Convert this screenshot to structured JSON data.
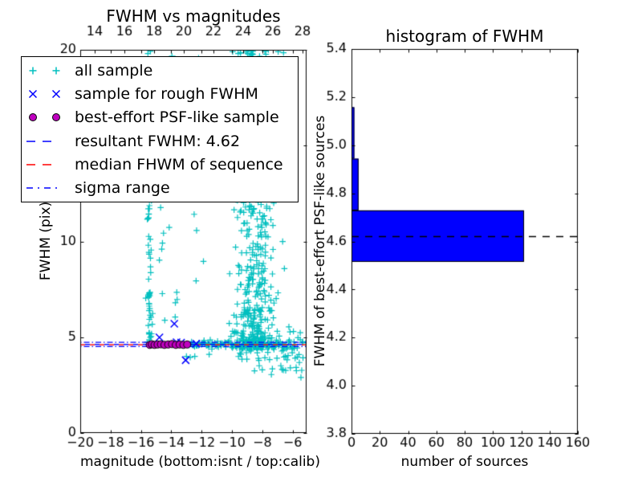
{
  "colors": {
    "cyan": "#00bfbf",
    "blue": "#0000ff",
    "magenta": "#bf00bf",
    "red": "#ff0000",
    "black": "#000000",
    "hist_bar": "#0000ff",
    "background": "#ffffff"
  },
  "left_plot": {
    "title": "FWHM vs magnitudes",
    "xlabel": "magnitude (bottom:isnt / top:calib)",
    "ylabel": "FWHM (pix)",
    "xlim": [
      -20,
      -5.08
    ],
    "ylim": [
      0,
      20
    ],
    "top_xlim": [
      13.03,
      28.27
    ],
    "xticks": {
      "values": [
        -20,
        -18,
        -16,
        -14,
        -12,
        -10,
        -8,
        -6
      ],
      "labels": [
        "−20",
        "−18",
        "−16",
        "−14",
        "−12",
        "−10",
        "−8",
        "−6"
      ]
    },
    "top_ticks": {
      "values": [
        14,
        16,
        18,
        20,
        22,
        24,
        26,
        28
      ],
      "labels": [
        "14",
        "16",
        "18",
        "20",
        "22",
        "24",
        "26",
        "28"
      ]
    },
    "yticks": {
      "values": [
        0,
        5,
        10,
        15,
        20
      ],
      "labels": [
        "0",
        "5",
        "10",
        "15",
        "20"
      ]
    }
  },
  "right_plot": {
    "title": "histogram of FWHM",
    "xlabel": "number of sources",
    "ylabel": "FWHM of best-effort PSF-like sources",
    "xlim": [
      0,
      160
    ],
    "ylim": [
      3.8,
      5.4
    ],
    "xticks": {
      "values": [
        0,
        20,
        40,
        60,
        80,
        100,
        120,
        140,
        160
      ],
      "labels": [
        "0",
        "20",
        "40",
        "60",
        "80",
        "100",
        "120",
        "140",
        "160"
      ]
    },
    "yticks": {
      "values": [
        3.8,
        4.0,
        4.2,
        4.4,
        4.6,
        4.8,
        5.0,
        5.2,
        5.4
      ],
      "labels": [
        "3.8",
        "4.0",
        "4.2",
        "4.4",
        "4.6",
        "4.8",
        "5.0",
        "5.2",
        "5.4"
      ]
    }
  },
  "legend": {
    "items": [
      {
        "label": "all sample",
        "marker": "plus",
        "color": "#00bfbf"
      },
      {
        "label": "sample for rough FWHM",
        "marker": "x",
        "color": "#0000ff"
      },
      {
        "label": "best-effort PSF-like sample",
        "marker": "circle",
        "color": "#bf00bf"
      },
      {
        "label": "resultant FWHM: 4.62",
        "marker": "dashed-line",
        "color": "#0000ff"
      },
      {
        "label": "median FHWM of sequence",
        "marker": "dashed-line",
        "color": "#ff0000"
      },
      {
        "label": "sigma range",
        "marker": "dashdot-line",
        "color": "#0000ff"
      }
    ]
  },
  "chart_data": [
    {
      "type": "scatter",
      "title": "FWHM vs magnitudes",
      "xlabel": "magnitude (bottom:isnt / top:calib)",
      "ylabel": "FWHM (pix)",
      "xlim": [
        -20,
        -5.08
      ],
      "ylim": [
        0,
        20
      ],
      "series": [
        {
          "name": "all sample",
          "marker": "plus",
          "color": "#00bfbf",
          "clusters": [
            {
              "n": 28,
              "x": {
                "dist": "normal",
                "mu": -15.42,
                "sigma": 0.08
              },
              "y": {
                "dist": "uniform",
                "min": 4.65,
                "max": 7.5
              }
            },
            {
              "n": 42,
              "x": {
                "dist": "normal",
                "mu": -15.42,
                "sigma": 0.09
              },
              "y": {
                "dist": "uniform",
                "min": 7.5,
                "max": 20
              }
            },
            {
              "n": 12,
              "x": {
                "dist": "normal",
                "mu": -14.55,
                "sigma": 0.12
              },
              "y": {
                "dist": "uniform",
                "min": 5.2,
                "max": 19.5
              }
            },
            {
              "n": 18,
              "x": {
                "dist": "normal",
                "mu": -13.85,
                "sigma": 0.13
              },
              "y": {
                "dist": "uniform",
                "min": 6.0,
                "max": 20
              }
            },
            {
              "n": 20,
              "x": {
                "dist": "uniform",
                "min": -13.4,
                "max": -11.2
              },
              "y": {
                "dist": "uniform",
                "min": 7.0,
                "max": 20
              }
            },
            {
              "n": 150,
              "x": {
                "dist": "normal",
                "mu": -8.8,
                "sigma": 0.85,
                "min": -11.0,
                "max": -6.5
              },
              "y": {
                "dist": "uniform",
                "min": 12.0,
                "max": 20
              }
            },
            {
              "n": 70,
              "x": {
                "dist": "normal",
                "mu": -8.45,
                "sigma": 0.45,
                "min": -10.5,
                "max": -6.6
              },
              "y": {
                "dist": "uniform",
                "min": 14.0,
                "max": 20
              }
            },
            {
              "n": 330,
              "x": {
                "dist": "normal",
                "mu": -8.55,
                "sigma": 0.7,
                "min": -11.0,
                "max": -6.2
              },
              "y": {
                "dist": "power",
                "min": 4.45,
                "max": 12.0,
                "k": 2.0
              }
            },
            {
              "n": 120,
              "x": {
                "dist": "uniform",
                "min": -12.85,
                "max": -6.2
              },
              "y": {
                "dist": "normal",
                "mu": 4.63,
                "sigma": 0.1
              }
            },
            {
              "n": 55,
              "x": {
                "dist": "uniform",
                "min": -9.6,
                "max": -5.3
              },
              "y": {
                "dist": "normal",
                "mu": 4.4,
                "sigma": 0.35
              }
            },
            {
              "n": 12,
              "x": {
                "dist": "uniform",
                "min": -6.3,
                "max": -5.1
              },
              "y": {
                "dist": "normal",
                "mu": 4.7,
                "sigma": 0.4
              }
            },
            {
              "n": 14,
              "x": {
                "dist": "uniform",
                "min": -8.6,
                "max": -5.3
              },
              "y": {
                "dist": "uniform",
                "min": 3.2,
                "max": 4.1
              }
            }
          ],
          "points": [
            [
              -9.95,
              19.9
            ],
            [
              -9.45,
              19.85
            ],
            [
              -9.05,
              19.95
            ],
            [
              -8.65,
              19.8
            ],
            [
              -7.6,
              20.0
            ],
            [
              -6.95,
              19.9
            ],
            [
              -6.6,
              19.85
            ],
            [
              -5.45,
              2.9
            ],
            [
              -5.75,
              3.25
            ],
            [
              -6.15,
              3.4
            ],
            [
              -13.0,
              4.0
            ],
            [
              -12.75,
              3.95
            ],
            [
              -12.45,
              4.0
            ],
            [
              -11.5,
              4.1
            ],
            [
              -8.0,
              3.3
            ],
            [
              -7.4,
              3.05
            ]
          ]
        },
        {
          "name": "sample for rough FWHM",
          "marker": "x",
          "color": "#0000ff",
          "points": [
            [
              -14.78,
              4.99
            ],
            [
              -13.8,
              5.7
            ],
            [
              -13.65,
              4.74
            ],
            [
              -13.35,
              4.72
            ],
            [
              -13.05,
              3.8
            ],
            [
              -12.35,
              4.66
            ]
          ]
        },
        {
          "name": "best-effort PSF-like sample",
          "marker": "circle",
          "color": "#bf00bf",
          "edge_color": "#000000",
          "points": [
            [
              -15.42,
              4.6
            ],
            [
              -15.28,
              4.63
            ],
            [
              -15.1,
              4.6
            ],
            [
              -14.9,
              4.62
            ],
            [
              -14.68,
              4.63
            ],
            [
              -14.45,
              4.6
            ],
            [
              -14.2,
              4.62
            ],
            [
              -13.95,
              4.64
            ],
            [
              -13.7,
              4.6
            ],
            [
              -13.45,
              4.62
            ],
            [
              -13.2,
              4.6
            ],
            [
              -12.95,
              4.62
            ]
          ]
        }
      ],
      "lines": [
        {
          "name": "resultant FWHM",
          "value": 4.62,
          "style": "dashed",
          "color": "#0000ff"
        },
        {
          "name": "median FHWM of sequence",
          "value": 4.605,
          "style": "dashed",
          "color": "#ff0000"
        },
        {
          "name": "sigma range upper",
          "value": 4.73,
          "style": "dashdot",
          "color": "#0000ff"
        },
        {
          "name": "sigma range lower",
          "value": 4.515,
          "style": "dashdot",
          "color": "#0000ff"
        }
      ]
    },
    {
      "type": "bar",
      "orientation": "horizontal",
      "title": "histogram of FWHM",
      "xlabel": "number of sources",
      "ylabel": "FWHM of best-effort PSF-like sources",
      "xlim": [
        0,
        160
      ],
      "ylim": [
        3.8,
        5.4
      ],
      "bar_color": "#0000ff",
      "bar_edge_color": "#000000",
      "bins": [
        {
          "from": 4.515,
          "to": 4.729,
          "count": 122
        },
        {
          "from": 4.729,
          "to": 4.944,
          "count": 5
        },
        {
          "from": 4.944,
          "to": 5.158,
          "count": 2
        }
      ],
      "hline": {
        "name": "resultant FWHM",
        "value": 4.62,
        "style": "dashed",
        "color": "#000000"
      }
    }
  ]
}
